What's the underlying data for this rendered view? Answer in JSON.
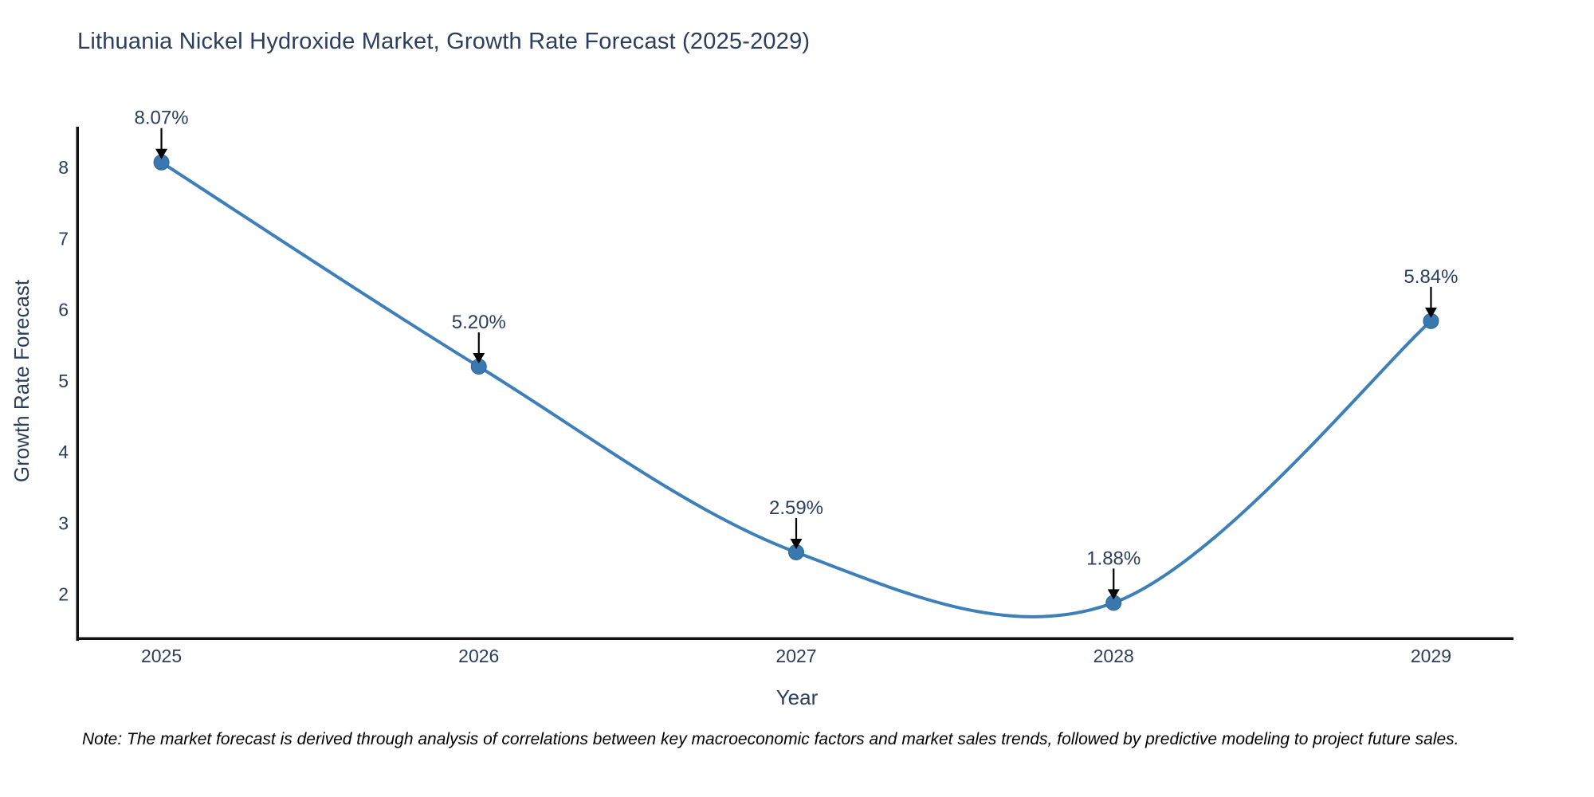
{
  "note": {
    "text": "Note: The market forecast is derived through analysis of correlations between key macroeconomic factors and market sales trends, followed by predictive modeling to project future sales."
  },
  "colors": {
    "line": "#3d7fb8",
    "marker_fill": "#3a78b0",
    "marker_stroke": "#2f6697",
    "text": "#2b3e5e",
    "axis_line": "#111111",
    "annotation_arrow": "#000000",
    "background": "#ffffff"
  },
  "chart_data": {
    "type": "line",
    "title": "Lithuania Nickel Hydroxide Market, Growth Rate Forecast (2025-2029)",
    "xlabel": "Year",
    "ylabel": "Growth Rate Forecast",
    "x": [
      2025,
      2026,
      2027,
      2028,
      2029
    ],
    "values": [
      8.07,
      5.2,
      2.59,
      1.88,
      5.84
    ],
    "point_labels": [
      "8.07%",
      "5.20%",
      "2.59%",
      "1.88%",
      "5.84%"
    ],
    "x_tick_labels": [
      "2025",
      "2026",
      "2027",
      "2028",
      "2029"
    ],
    "x_ticks": [
      2025,
      2026,
      2027,
      2028,
      2029
    ],
    "y_tick_labels": [
      "2",
      "3",
      "4",
      "5",
      "6",
      "7",
      "8"
    ],
    "y_ticks": [
      2,
      3,
      4,
      5,
      6,
      7,
      8
    ],
    "xlim": [
      2024.74,
      2029.26
    ],
    "ylim": [
      1.38,
      8.56
    ],
    "grid": false,
    "legend": false,
    "line_shape": "spline",
    "annotations_arrow_direction": "down"
  }
}
